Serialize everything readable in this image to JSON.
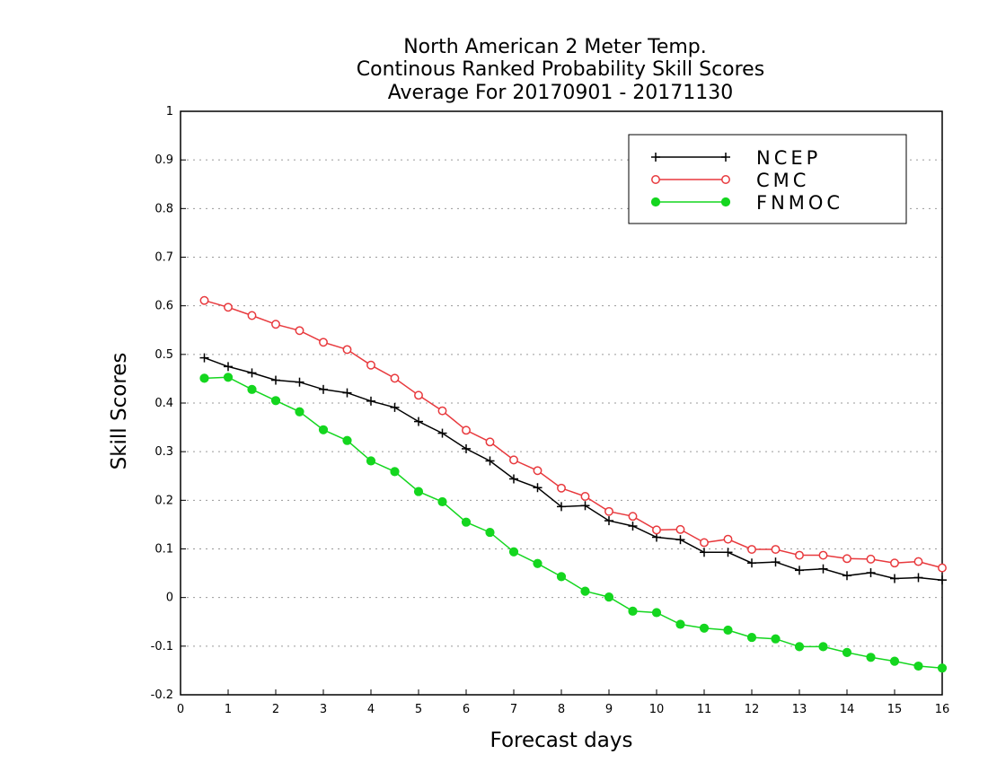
{
  "chart_data": {
    "type": "line",
    "title": [
      "North American 2 Meter Temp.",
      "Continous Ranked Probability Skill Scores",
      "Average For 20170901 - 20171130"
    ],
    "xlabel": "Forecast days",
    "ylabel": "Skill Scores",
    "xlim": [
      0,
      16
    ],
    "ylim": [
      -0.2,
      1
    ],
    "xticks": [
      "0",
      "1",
      "2",
      "3",
      "4",
      "5",
      "6",
      "7",
      "8",
      "9",
      "10",
      "11",
      "12",
      "13",
      "14",
      "15",
      "16"
    ],
    "yticks": [
      "1",
      "0.9",
      "0.8",
      "0.7",
      "0.6",
      "0.5",
      "0.4",
      "0.3",
      "0.2",
      "0.1",
      "0",
      "-0.1",
      "-0.2"
    ],
    "grid": true,
    "legend_position": "top-right",
    "x": [
      0.5,
      1,
      1.5,
      2,
      2.5,
      3,
      3.5,
      4,
      4.5,
      5,
      5.5,
      6,
      6.5,
      7,
      7.5,
      8,
      8.5,
      9,
      9.5,
      10,
      10.5,
      11,
      11.5,
      12,
      12.5,
      13,
      13.5,
      14,
      14.5,
      15,
      15.5,
      16
    ],
    "series": [
      {
        "name": "NCEP",
        "color": "#000000",
        "marker": "plus",
        "values": [
          0.493,
          0.475,
          0.462,
          0.447,
          0.443,
          0.428,
          0.421,
          0.404,
          0.391,
          0.362,
          0.338,
          0.306,
          0.281,
          0.244,
          0.226,
          0.187,
          0.189,
          0.158,
          0.147,
          0.124,
          0.119,
          0.093,
          0.093,
          0.071,
          0.073,
          0.056,
          0.059,
          0.045,
          0.051,
          0.039,
          0.041,
          0.036
        ]
      },
      {
        "name": "CMC",
        "color": "#e8393d",
        "marker": "open-circle",
        "values": [
          0.611,
          0.597,
          0.58,
          0.562,
          0.549,
          0.525,
          0.51,
          0.478,
          0.451,
          0.416,
          0.384,
          0.344,
          0.32,
          0.283,
          0.261,
          0.225,
          0.208,
          0.177,
          0.167,
          0.139,
          0.14,
          0.113,
          0.12,
          0.099,
          0.099,
          0.087,
          0.087,
          0.08,
          0.079,
          0.071,
          0.074,
          0.061
        ]
      },
      {
        "name": "FNMOC",
        "color": "#14d61f",
        "marker": "filled-circle",
        "values": [
          0.451,
          0.453,
          0.428,
          0.405,
          0.382,
          0.345,
          0.323,
          0.281,
          0.259,
          0.218,
          0.197,
          0.155,
          0.134,
          0.094,
          0.07,
          0.043,
          0.013,
          0.001,
          -0.028,
          -0.031,
          -0.055,
          -0.063,
          -0.067,
          -0.082,
          -0.085,
          -0.101,
          -0.101,
          -0.113,
          -0.123,
          -0.131,
          -0.141,
          -0.145
        ]
      }
    ]
  }
}
